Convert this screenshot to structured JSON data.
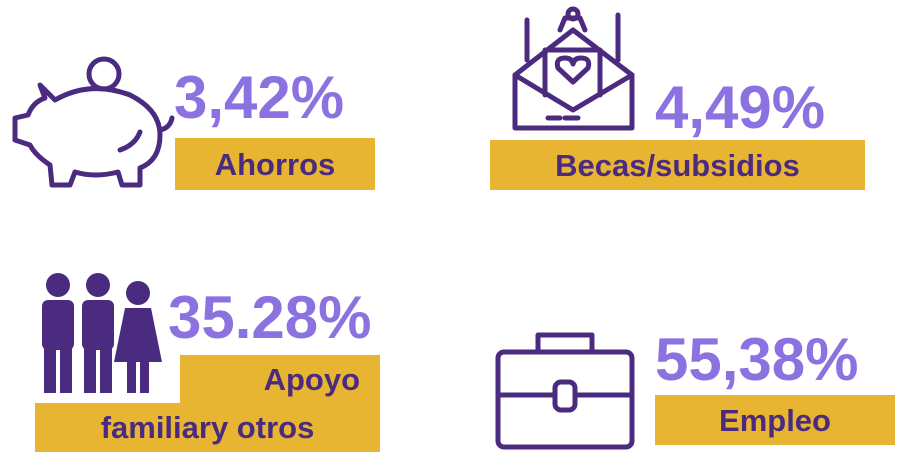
{
  "items": [
    {
      "value": "3,42%",
      "label": [
        "Ahorros"
      ]
    },
    {
      "value": "4,49%",
      "label": [
        "Becas/subsidios"
      ]
    },
    {
      "value": "35.28%",
      "label": [
        "Apoyo",
        "familiary otros"
      ]
    },
    {
      "value": "55,38%",
      "label": [
        "Empleo"
      ]
    }
  ]
}
